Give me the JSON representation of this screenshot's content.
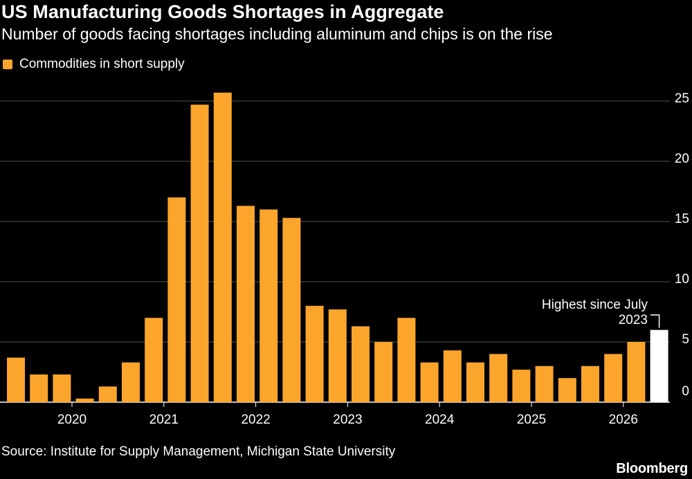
{
  "header": {
    "title": "US Manufacturing Goods Shortages in Aggregate",
    "subtitle": "Number of goods facing shortages including aluminum and chips is on the rise"
  },
  "legend": {
    "label": "Commodities in short supply"
  },
  "footer": {
    "source": "Source: Institute for Supply Management, Michigan State University",
    "brand": "Bloomberg"
  },
  "colors": {
    "bar": "#fba52c",
    "highlight": "#ffffff",
    "grid": "#555555",
    "background": "#000000"
  },
  "chart_data": {
    "type": "bar",
    "title": "US Manufacturing Goods Shortages in Aggregate",
    "subtitle": "Number of goods facing shortages including aluminum and chips is on the rise",
    "series": [
      {
        "name": "Commodities in short supply",
        "values": [
          3.7,
          2.3,
          2.3,
          0.3,
          1.3,
          3.3,
          7.0,
          17.0,
          24.7,
          25.7,
          16.3,
          16.0,
          15.3,
          8.0,
          7.7,
          6.3,
          5.0,
          7.0,
          3.3,
          4.3,
          3.3,
          4.0,
          2.7,
          3.0,
          2.0,
          3.0,
          4.0,
          5.0,
          6.0
        ]
      }
    ],
    "x_tick_labels": [
      "2020",
      "2021",
      "2022",
      "2023",
      "2024",
      "2025",
      "2026"
    ],
    "y_ticks": [
      0,
      5,
      10,
      15,
      20,
      25
    ],
    "ylim": [
      0,
      25.7
    ],
    "grid": true,
    "y_axis_side": "right",
    "legend_position": "top-left",
    "highlight_last_bar": true,
    "annotation": {
      "line1": "Highest since July",
      "line2": "2023"
    }
  }
}
